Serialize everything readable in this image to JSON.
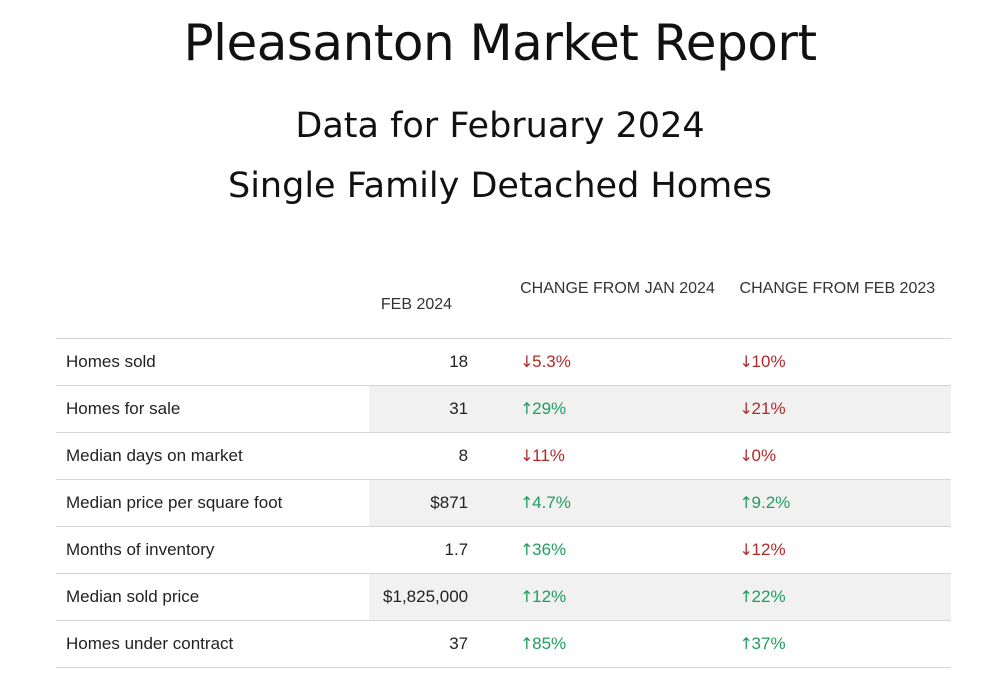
{
  "header": {
    "title": "Pleasanton Market Report",
    "subtitle_1": "Data for February 2024",
    "subtitle_2": "Single Family Detached Homes"
  },
  "table": {
    "columns": {
      "value": "FEB 2024",
      "change_month": "CHANGE FROM JAN 2024",
      "change_year": "CHANGE FROM FEB 2023"
    },
    "rows": [
      {
        "label": "Homes sold",
        "value": "18",
        "change_month": {
          "dir": "down",
          "text": "5.3%"
        },
        "change_year": {
          "dir": "down",
          "text": "10%"
        }
      },
      {
        "label": "Homes for sale",
        "value": "31",
        "change_month": {
          "dir": "up",
          "text": "29%"
        },
        "change_year": {
          "dir": "down",
          "text": "21%"
        }
      },
      {
        "label": "Median days on market",
        "value": "8",
        "change_month": {
          "dir": "down",
          "text": "11%"
        },
        "change_year": {
          "dir": "down",
          "text": "0%"
        }
      },
      {
        "label": "Median price per square foot",
        "value": "$871",
        "change_month": {
          "dir": "up",
          "text": "4.7%"
        },
        "change_year": {
          "dir": "up",
          "text": "9.2%"
        }
      },
      {
        "label": "Months of inventory",
        "value": "1.7",
        "change_month": {
          "dir": "up",
          "text": "36%"
        },
        "change_year": {
          "dir": "down",
          "text": "12%"
        }
      },
      {
        "label": "Median sold price",
        "value": "$1,825,000",
        "change_month": {
          "dir": "up",
          "text": "12%"
        },
        "change_year": {
          "dir": "up",
          "text": "22%"
        }
      },
      {
        "label": "Homes under contract",
        "value": "37",
        "change_month": {
          "dir": "up",
          "text": "85%"
        },
        "change_year": {
          "dir": "up",
          "text": "37%"
        }
      }
    ]
  },
  "colors": {
    "down": "#b02a2a",
    "up": "#1e9e5e",
    "alt_row": "#f1f1f1"
  },
  "icons": {
    "up": "arrow-up-icon",
    "down": "arrow-down-icon"
  }
}
